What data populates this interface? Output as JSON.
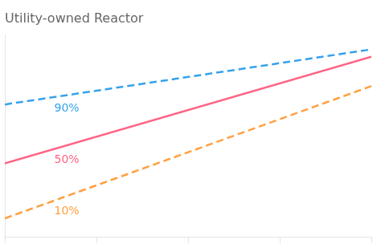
{
  "chart_data": {
    "type": "line",
    "title": "Utility-owned Reactor",
    "x": [
      0,
      10
    ],
    "series": [
      {
        "name": "90%",
        "line_style": "dashed",
        "values": [
          0.72,
          1.02
        ]
      },
      {
        "name": "50%",
        "line_style": "solid",
        "values": [
          0.4,
          0.98
        ]
      },
      {
        "name": "10%",
        "line_style": "dashed",
        "values": [
          0.1,
          0.82
        ]
      }
    ],
    "xlim": [
      0,
      10
    ],
    "ylim": [
      0,
      1.1
    ],
    "xticks": [
      0,
      2.5,
      5,
      7.5,
      10
    ],
    "grid": false,
    "tick_labels": false
  }
}
